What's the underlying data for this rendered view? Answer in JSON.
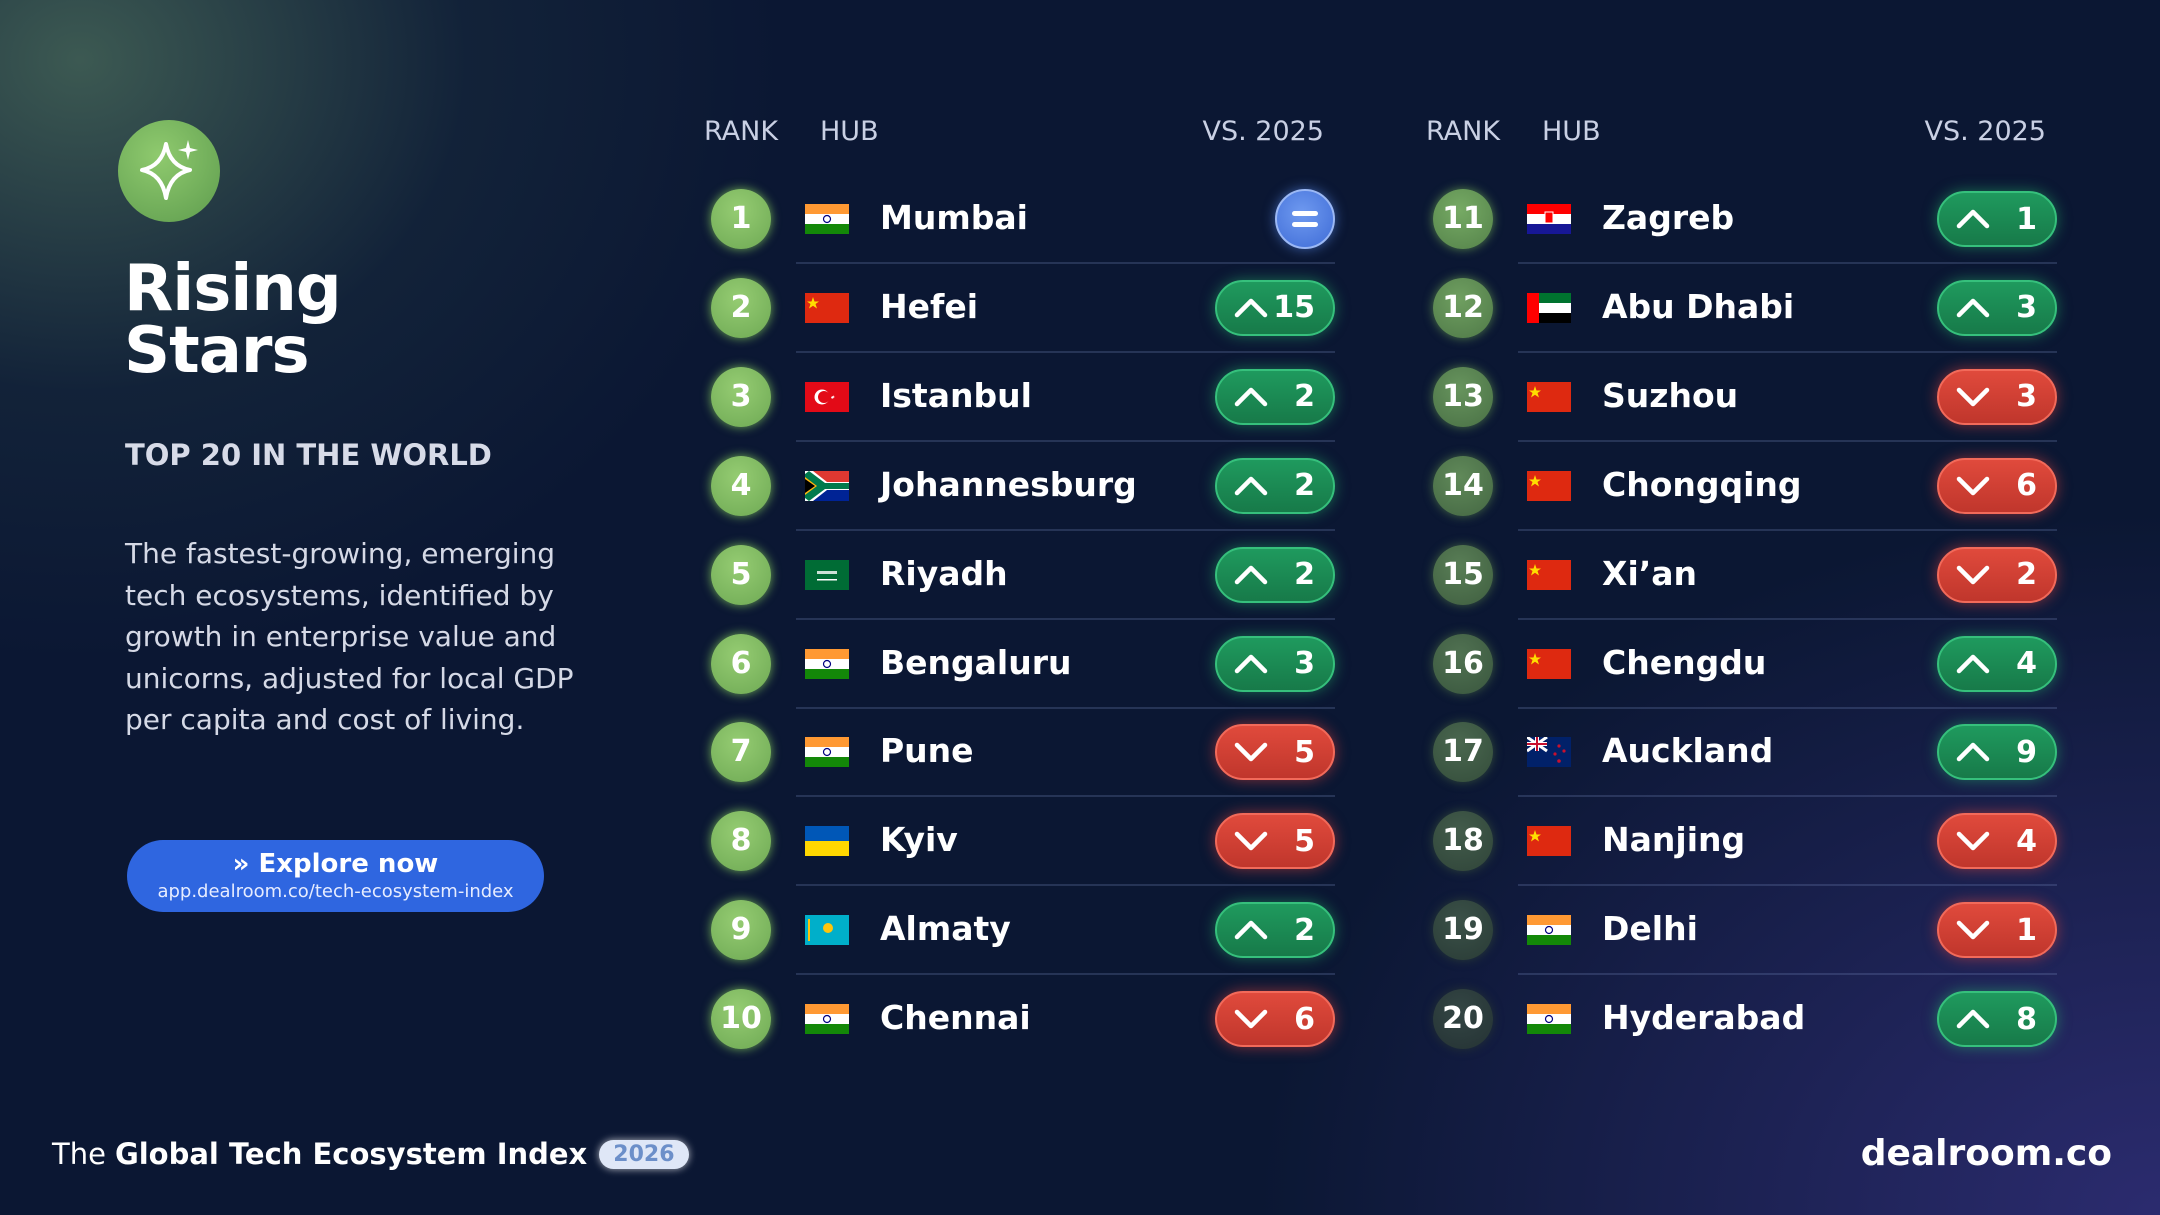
{
  "panel": {
    "title": "Rising Stars",
    "subtitle": "TOP 20 IN THE WORLD",
    "description": "The fastest-growing, emerging tech ecosystems, identified by growth in enterprise value and unicorns, adjusted for local GDP per capita and cost of living.",
    "button": {
      "label": "» Explore now",
      "url": "app.dealroom.co/tech-ecosystem-index"
    }
  },
  "tables": [
    {
      "headers": [
        "RANK",
        "HUB",
        "VS. 2025"
      ],
      "rows": [
        {
          "rank": 1,
          "hub": "Mumbai",
          "change": {
            "direction": "same"
          }
        },
        {
          "rank": 2,
          "hub": "Hefei",
          "change": {
            "direction": "up",
            "value": 15
          }
        },
        {
          "rank": 3,
          "hub": "Istanbul",
          "change": {
            "direction": "up",
            "value": 2
          }
        },
        {
          "rank": 4,
          "hub": "Johannesburg",
          "change": {
            "direction": "up",
            "value": 2
          }
        },
        {
          "rank": 5,
          "hub": "Riyadh",
          "change": {
            "direction": "up",
            "value": 2
          }
        },
        {
          "rank": 6,
          "hub": "Bengaluru",
          "change": {
            "direction": "up",
            "value": 3
          }
        },
        {
          "rank": 7,
          "hub": "Pune",
          "change": {
            "direction": "down",
            "value": 5
          }
        },
        {
          "rank": 8,
          "hub": "Kyiv",
          "change": {
            "direction": "down",
            "value": 5
          }
        },
        {
          "rank": 9,
          "hub": "Almaty",
          "change": {
            "direction": "up",
            "value": 2
          }
        },
        {
          "rank": 10,
          "hub": "Chennai",
          "change": {
            "direction": "down",
            "value": 6
          }
        }
      ]
    },
    {
      "headers": [
        "RANK",
        "HUB",
        "VS. 2025"
      ],
      "rows": [
        {
          "rank": 11,
          "hub": "Zagreb",
          "change": {
            "direction": "up",
            "value": 1
          }
        },
        {
          "rank": 12,
          "hub": "Abu Dhabi",
          "change": {
            "direction": "up",
            "value": 3
          }
        },
        {
          "rank": 13,
          "hub": "Suzhou",
          "change": {
            "direction": "down",
            "value": 3
          }
        },
        {
          "rank": 14,
          "hub": "Chongqing",
          "change": {
            "direction": "down",
            "value": 6
          }
        },
        {
          "rank": 15,
          "hub": "Xi’an",
          "change": {
            "direction": "down",
            "value": 2
          }
        },
        {
          "rank": 16,
          "hub": "Chengdu",
          "change": {
            "direction": "up",
            "value": 4
          }
        },
        {
          "rank": 17,
          "hub": "Auckland",
          "change": {
            "direction": "up",
            "value": 9
          }
        },
        {
          "rank": 18,
          "hub": "Nanjing",
          "change": {
            "direction": "down",
            "value": 4
          }
        },
        {
          "rank": 19,
          "hub": "Delhi",
          "change": {
            "direction": "down",
            "value": 1
          }
        },
        {
          "rank": 20,
          "hub": "Hyderabad",
          "change": {
            "direction": "up",
            "value": 8
          }
        }
      ]
    }
  ],
  "footer": {
    "prefix": "The",
    "title": "Global Tech Ecosystem Index",
    "year": "2026"
  },
  "brand": "dealroom.co"
}
